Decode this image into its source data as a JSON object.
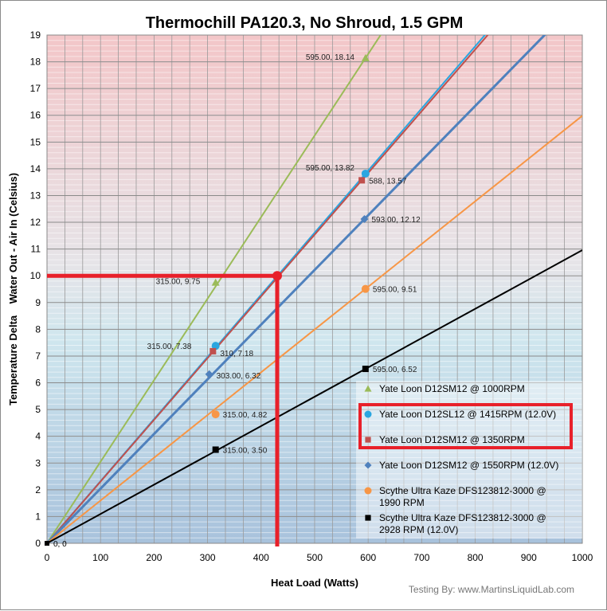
{
  "chart_data": {
    "type": "line",
    "title": "Thermochill PA120.3, No Shroud, 1.5 GPM",
    "xlabel": "Heat Load (Watts)",
    "ylabel": "Temperature Delta    Water Out - Air In (Celsius)",
    "xlim": [
      0,
      1000
    ],
    "ylim": [
      0,
      19
    ],
    "xticks": [
      0,
      100,
      200,
      300,
      400,
      500,
      600,
      700,
      800,
      900,
      1000
    ],
    "yticks": [
      0,
      1,
      2,
      3,
      4,
      5,
      6,
      7,
      8,
      9,
      10,
      11,
      12,
      13,
      14,
      15,
      16,
      17,
      18,
      19
    ],
    "grid": true,
    "legend_position": "bottom-right",
    "origin_label": "0, 0",
    "series": [
      {
        "name": "Yate Loon D12SM12  @ 1000RPM",
        "color": "#9bbb59",
        "marker": "triangle",
        "points": [
          [
            315,
            9.75
          ],
          [
            595,
            18.14
          ]
        ],
        "labels": [
          "315.00, 9.75",
          "595.00, 18.14"
        ],
        "highlighted": false
      },
      {
        "name": "Yate Loon D12SL12  @ 1415RPM  (12.0V)",
        "color": "#2aa6e0",
        "marker": "circle",
        "points": [
          [
            315,
            7.38
          ],
          [
            595,
            13.82
          ]
        ],
        "labels": [
          "315.00, 7.38",
          "595.00, 13.82"
        ],
        "highlighted": true
      },
      {
        "name": "Yate Loon D12SM12  @ 1350RPM",
        "color": "#c0504d",
        "marker": "square",
        "points": [
          [
            310,
            7.18
          ],
          [
            588,
            13.57
          ]
        ],
        "labels": [
          "310, 7.18",
          "588, 13.57"
        ],
        "highlighted": true
      },
      {
        "name": "Yate Loon D12SM12  @ 1550RPM  (12.0V)",
        "color": "#4f81bd",
        "marker": "diamond",
        "points": [
          [
            303,
            6.32
          ],
          [
            593,
            12.12
          ]
        ],
        "labels": [
          "303.00, 6.32",
          "593.00, 12.12"
        ],
        "highlighted": false
      },
      {
        "name": "Scythe Ultra Kaze DFS123812-3000  @ 1990 RPM",
        "color": "#f79646",
        "marker": "circle",
        "points": [
          [
            315,
            4.82
          ],
          [
            595,
            9.51
          ]
        ],
        "labels": [
          "315.00, 4.82",
          "595.00, 9.51"
        ],
        "highlighted": false
      },
      {
        "name": "Scythe Ultra Kaze DFS123812-3000  @ 2928 RPM (12.0V)",
        "color": "#000000",
        "marker": "square",
        "points": [
          [
            315,
            3.5
          ],
          [
            595,
            6.52
          ]
        ],
        "labels": [
          "315.00, 3.50",
          "595.00, 6.52"
        ],
        "highlighted": false
      }
    ],
    "annotation": {
      "x": 430,
      "y": 10,
      "color": "#e8202a"
    },
    "credit": "Testing By: www.MartinsLiquidLab.com"
  }
}
